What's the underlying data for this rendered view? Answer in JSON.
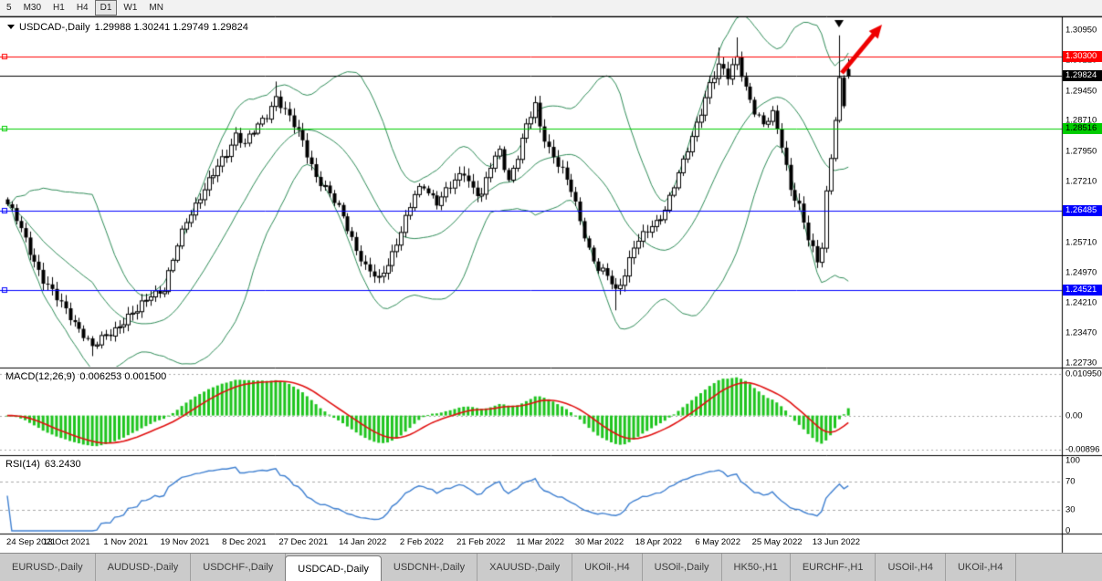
{
  "toolbar": {
    "timeframes": [
      {
        "label": "5",
        "active": false
      },
      {
        "label": "M30",
        "active": false
      },
      {
        "label": "H1",
        "active": false
      },
      {
        "label": "H4",
        "active": false
      },
      {
        "label": "D1",
        "active": true
      },
      {
        "label": "W1",
        "active": false
      },
      {
        "label": "MN",
        "active": false
      }
    ]
  },
  "price_panel": {
    "symbol": "USDCAD-,Daily",
    "ohlc_text": "1.29988 1.30241 1.29749 1.29824"
  },
  "chart_data": {
    "type": "candlestick",
    "title": "USDCAD-,Daily",
    "current_ohlc": {
      "open": "1.29988",
      "high": "1.30241",
      "low": "1.29749",
      "close": "1.29824"
    },
    "ylim": [
      1.2273,
      1.3095
    ],
    "y_ticks": [
      "1.30950",
      "1.30210",
      "1.29450",
      "1.28710",
      "1.27950",
      "1.27210",
      "1.26450",
      "1.25710",
      "1.24970",
      "1.24210",
      "1.23470",
      "1.22730"
    ],
    "x_labels": [
      "24 Sep 2021",
      "13 Oct 2021",
      "1 Nov 2021",
      "19 Nov 2021",
      "8 Dec 2021",
      "27 Dec 2021",
      "14 Jan 2022",
      "2 Feb 2022",
      "21 Feb 2022",
      "11 Mar 2022",
      "30 Mar 2022",
      "18 Apr 2022",
      "6 May 2022",
      "25 May 2022",
      "13 Jun 2022"
    ],
    "bars_total": 189,
    "close_anchors": [
      [
        0,
        1.2665
      ],
      [
        2,
        1.2625
      ],
      [
        5,
        1.255
      ],
      [
        8,
        1.248
      ],
      [
        11,
        1.243
      ],
      [
        14,
        1.239
      ],
      [
        17,
        1.2345
      ],
      [
        19,
        1.2308
      ],
      [
        22,
        1.2342
      ],
      [
        26,
        1.2376
      ],
      [
        29,
        1.24
      ],
      [
        32,
        1.2446
      ],
      [
        35,
        1.2455
      ],
      [
        38,
        1.256
      ],
      [
        40,
        1.2626
      ],
      [
        43,
        1.2686
      ],
      [
        46,
        1.2736
      ],
      [
        49,
        1.2792
      ],
      [
        51,
        1.284
      ],
      [
        53,
        1.2814
      ],
      [
        56,
        1.2856
      ],
      [
        58,
        1.2886
      ],
      [
        60,
        1.2932
      ],
      [
        63,
        1.2876
      ],
      [
        66,
        1.282
      ],
      [
        69,
        1.2736
      ],
      [
        72,
        1.2686
      ],
      [
        75,
        1.2636
      ],
      [
        78,
        1.2556
      ],
      [
        80,
        1.2506
      ],
      [
        83,
        1.2476
      ],
      [
        86,
        1.2546
      ],
      [
        89,
        1.2626
      ],
      [
        91,
        1.2686
      ],
      [
        93,
        1.2712
      ],
      [
        96,
        1.2672
      ],
      [
        99,
        1.2706
      ],
      [
        102,
        1.2746
      ],
      [
        104,
        1.2706
      ],
      [
        106,
        1.2686
      ],
      [
        108,
        1.2756
      ],
      [
        110,
        1.2796
      ],
      [
        112,
        1.2726
      ],
      [
        114,
        1.2786
      ],
      [
        116,
        1.2856
      ],
      [
        118,
        1.2906
      ],
      [
        119,
        1.2856
      ],
      [
        121,
        1.2806
      ],
      [
        124,
        1.2746
      ],
      [
        126,
        1.2696
      ],
      [
        128,
        1.2626
      ],
      [
        130,
        1.2556
      ],
      [
        132,
        1.2506
      ],
      [
        134,
        1.2486
      ],
      [
        136,
        1.2446
      ],
      [
        138,
        1.2496
      ],
      [
        140,
        1.2566
      ],
      [
        142,
        1.2586
      ],
      [
        145,
        1.2616
      ],
      [
        147,
        1.2656
      ],
      [
        149,
        1.2716
      ],
      [
        151,
        1.2766
      ],
      [
        153,
        1.2826
      ],
      [
        155,
        1.2896
      ],
      [
        157,
        1.2966
      ],
      [
        159,
        1.3006
      ],
      [
        161,
        1.2976
      ],
      [
        163,
        1.3026
      ],
      [
        165,
        1.2956
      ],
      [
        167,
        1.2896
      ],
      [
        169,
        1.2856
      ],
      [
        171,
        1.2886
      ],
      [
        173,
        1.2816
      ],
      [
        175,
        1.2706
      ],
      [
        177,
        1.2656
      ],
      [
        179,
        1.2576
      ],
      [
        181,
        1.2526
      ],
      [
        182,
        1.2566
      ],
      [
        183,
        1.2696
      ],
      [
        184,
        1.2786
      ],
      [
        185,
        1.2876
      ],
      [
        186,
        1.2966
      ],
      [
        187,
        1.2906
      ],
      [
        188,
        1.29824
      ]
    ],
    "wick_events": [
      {
        "i": 19,
        "low": 1.229
      },
      {
        "i": 60,
        "high": 1.2968
      },
      {
        "i": 136,
        "low": 1.2403
      },
      {
        "i": 159,
        "high": 1.3052
      },
      {
        "i": 163,
        "high": 1.3077
      },
      {
        "i": 186,
        "high": 1.3082
      }
    ],
    "horizontal_lines": [
      {
        "price": 1.303,
        "label": "1.30300",
        "color": "#ff0000",
        "text": "#ffffff",
        "current": false
      },
      {
        "price": 1.29824,
        "label": "1.29824",
        "color": "#000000",
        "text": "#ffffff",
        "current": true
      },
      {
        "price": 1.28516,
        "label": "1.28516",
        "color": "#00cc00",
        "text": "#000000",
        "current": false
      },
      {
        "price": 1.26485,
        "label": "1.26485",
        "color": "#0000ff",
        "text": "#ffffff",
        "current": false
      },
      {
        "price": 1.24521,
        "label": "1.24521",
        "color": "#0000ff",
        "text": "#ffffff",
        "current": false
      }
    ],
    "annotations": [
      {
        "type": "up-trend-arrow",
        "color": "#ee0000"
      },
      {
        "type": "high-marker-triangle",
        "color": "#000000"
      }
    ],
    "bollinger": {
      "period": 20,
      "deviation": 2,
      "color": "#2e8b57"
    },
    "macd": {
      "name": "MACD(12,26,9)",
      "value_text": "0.006253 0.001500",
      "value_main": "0.006253",
      "value_signal": "0.001500",
      "fast": 12,
      "slow": 26,
      "signal": 9,
      "axis": [
        "0.010950",
        "0.00",
        "-0.00896"
      ],
      "histogram_color": "#1ec41e",
      "signal_color": "#e01010"
    },
    "rsi": {
      "name": "RSI(14)",
      "value": "63.2430",
      "period": 14,
      "axis": [
        "100",
        "70",
        "30",
        "0"
      ],
      "levels": [
        70,
        30
      ],
      "color": "#3e7fd0"
    }
  },
  "tabs": [
    "EURUSD-,Daily",
    "AUDUSD-,Daily",
    "USDCHF-,Daily",
    "USDCAD-,Daily",
    "USDCNH-,Daily",
    "XAUUSD-,Daily",
    "UKOil-,H4",
    "USOil-,Daily",
    "HK50-,H1",
    "EURCHF-,H1",
    "USOil-,H4",
    "UKOil-,H4"
  ],
  "active_tab": "USDCAD-,Daily"
}
